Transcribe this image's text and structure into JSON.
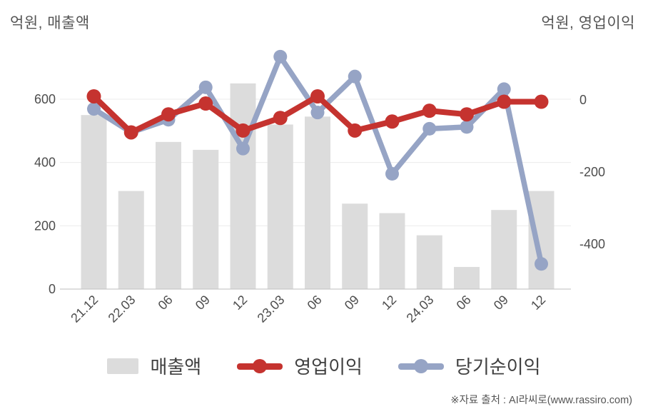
{
  "titles": {
    "left": "억원, 매출액",
    "right": "억원, 영업이익"
  },
  "legend": {
    "items": [
      {
        "label": "매출액",
        "marker": "bar-swatch",
        "color": "#dcdcdc"
      },
      {
        "label": "영업이익",
        "marker": "line-marker",
        "color": "#c5332f"
      },
      {
        "label": "당기순이익",
        "marker": "line-marker",
        "color": "#96a4c5"
      }
    ]
  },
  "footer": {
    "source": "※자료 출처 : AI라씨로(www.rassiro.com)"
  },
  "colors": {
    "bar": "#dcdcdc",
    "operating_profit_line": "#c5332f",
    "net_income_line": "#96a4c5",
    "gridline": "#ececec",
    "axis_line": "#c9c9c9",
    "tick_text": "#4d4d4d",
    "title_text": "#555555"
  },
  "chart_data": {
    "type": "bar",
    "subtype": "dual-axis bar + 2 lines",
    "title": "",
    "categories": [
      "21.12",
      "22.03",
      "06",
      "09",
      "12",
      "23.03",
      "06",
      "09",
      "12",
      "24.03",
      "06",
      "09",
      "12"
    ],
    "series": [
      {
        "name": "매출액",
        "type": "bar",
        "axis": "left",
        "color": "#dcdcdc",
        "values": [
          550,
          310,
          465,
          440,
          650,
          520,
          545,
          270,
          240,
          170,
          70,
          250,
          310
        ]
      },
      {
        "name": "영업이익",
        "type": "line",
        "axis": "right",
        "color": "#c5332f",
        "values": [
          10,
          -90,
          -40,
          -10,
          -85,
          -50,
          10,
          -85,
          -60,
          -30,
          -40,
          -5,
          -5
        ]
      },
      {
        "name": "당기순이익",
        "type": "line",
        "axis": "right",
        "color": "#96a4c5",
        "values": [
          -25,
          -90,
          -55,
          35,
          -135,
          120,
          -35,
          65,
          -205,
          -80,
          -75,
          30,
          -455
        ]
      }
    ],
    "left_axis": {
      "label": "억원, 매출액",
      "ticks": [
        0,
        200,
        400,
        600
      ],
      "range": [
        0,
        780
      ]
    },
    "right_axis": {
      "label": "억원, 영업이익",
      "ticks": [
        0,
        -200,
        -400
      ],
      "range": [
        -525,
        160
      ]
    },
    "grid": true,
    "legend_position": "bottom",
    "legend_entries": [
      "매출액",
      "영업이익",
      "당기순이익"
    ]
  }
}
